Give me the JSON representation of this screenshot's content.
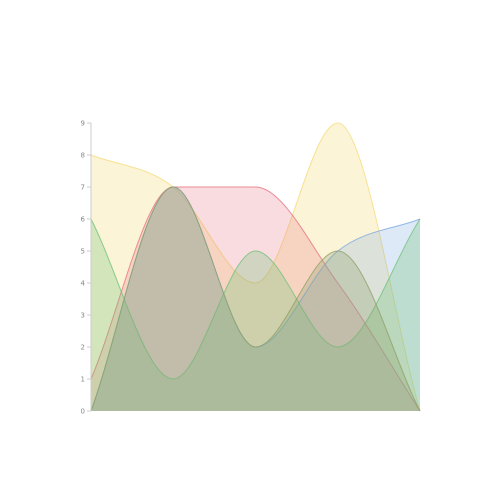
{
  "chart_data": {
    "type": "area",
    "x": [
      0,
      1,
      2,
      3,
      4
    ],
    "yticks": [
      0,
      1,
      2,
      3,
      4,
      5,
      6,
      7,
      8,
      9
    ],
    "ylim": [
      0,
      9
    ],
    "xlim": [
      0,
      4
    ],
    "grid": false,
    "legend": "none",
    "series": [
      {
        "values": [
          8,
          7,
          4,
          9,
          0
        ],
        "color": "#f5dc7a",
        "fill_opacity": 0.3
      },
      {
        "values": [
          1,
          7,
          7,
          4,
          0
        ],
        "color": "#e8727f",
        "fill_opacity": 0.25
      },
      {
        "values": [
          0,
          7,
          2,
          5,
          6
        ],
        "color": "#7aa9e0",
        "fill_opacity": 0.25
      },
      {
        "values": [
          6,
          1,
          5,
          2,
          6
        ],
        "color": "#6fc27a",
        "fill_opacity": 0.3
      },
      {
        "values": [
          0,
          7,
          2,
          5,
          0
        ],
        "color": "#8fa06a",
        "fill_opacity": 0.3
      }
    ]
  }
}
